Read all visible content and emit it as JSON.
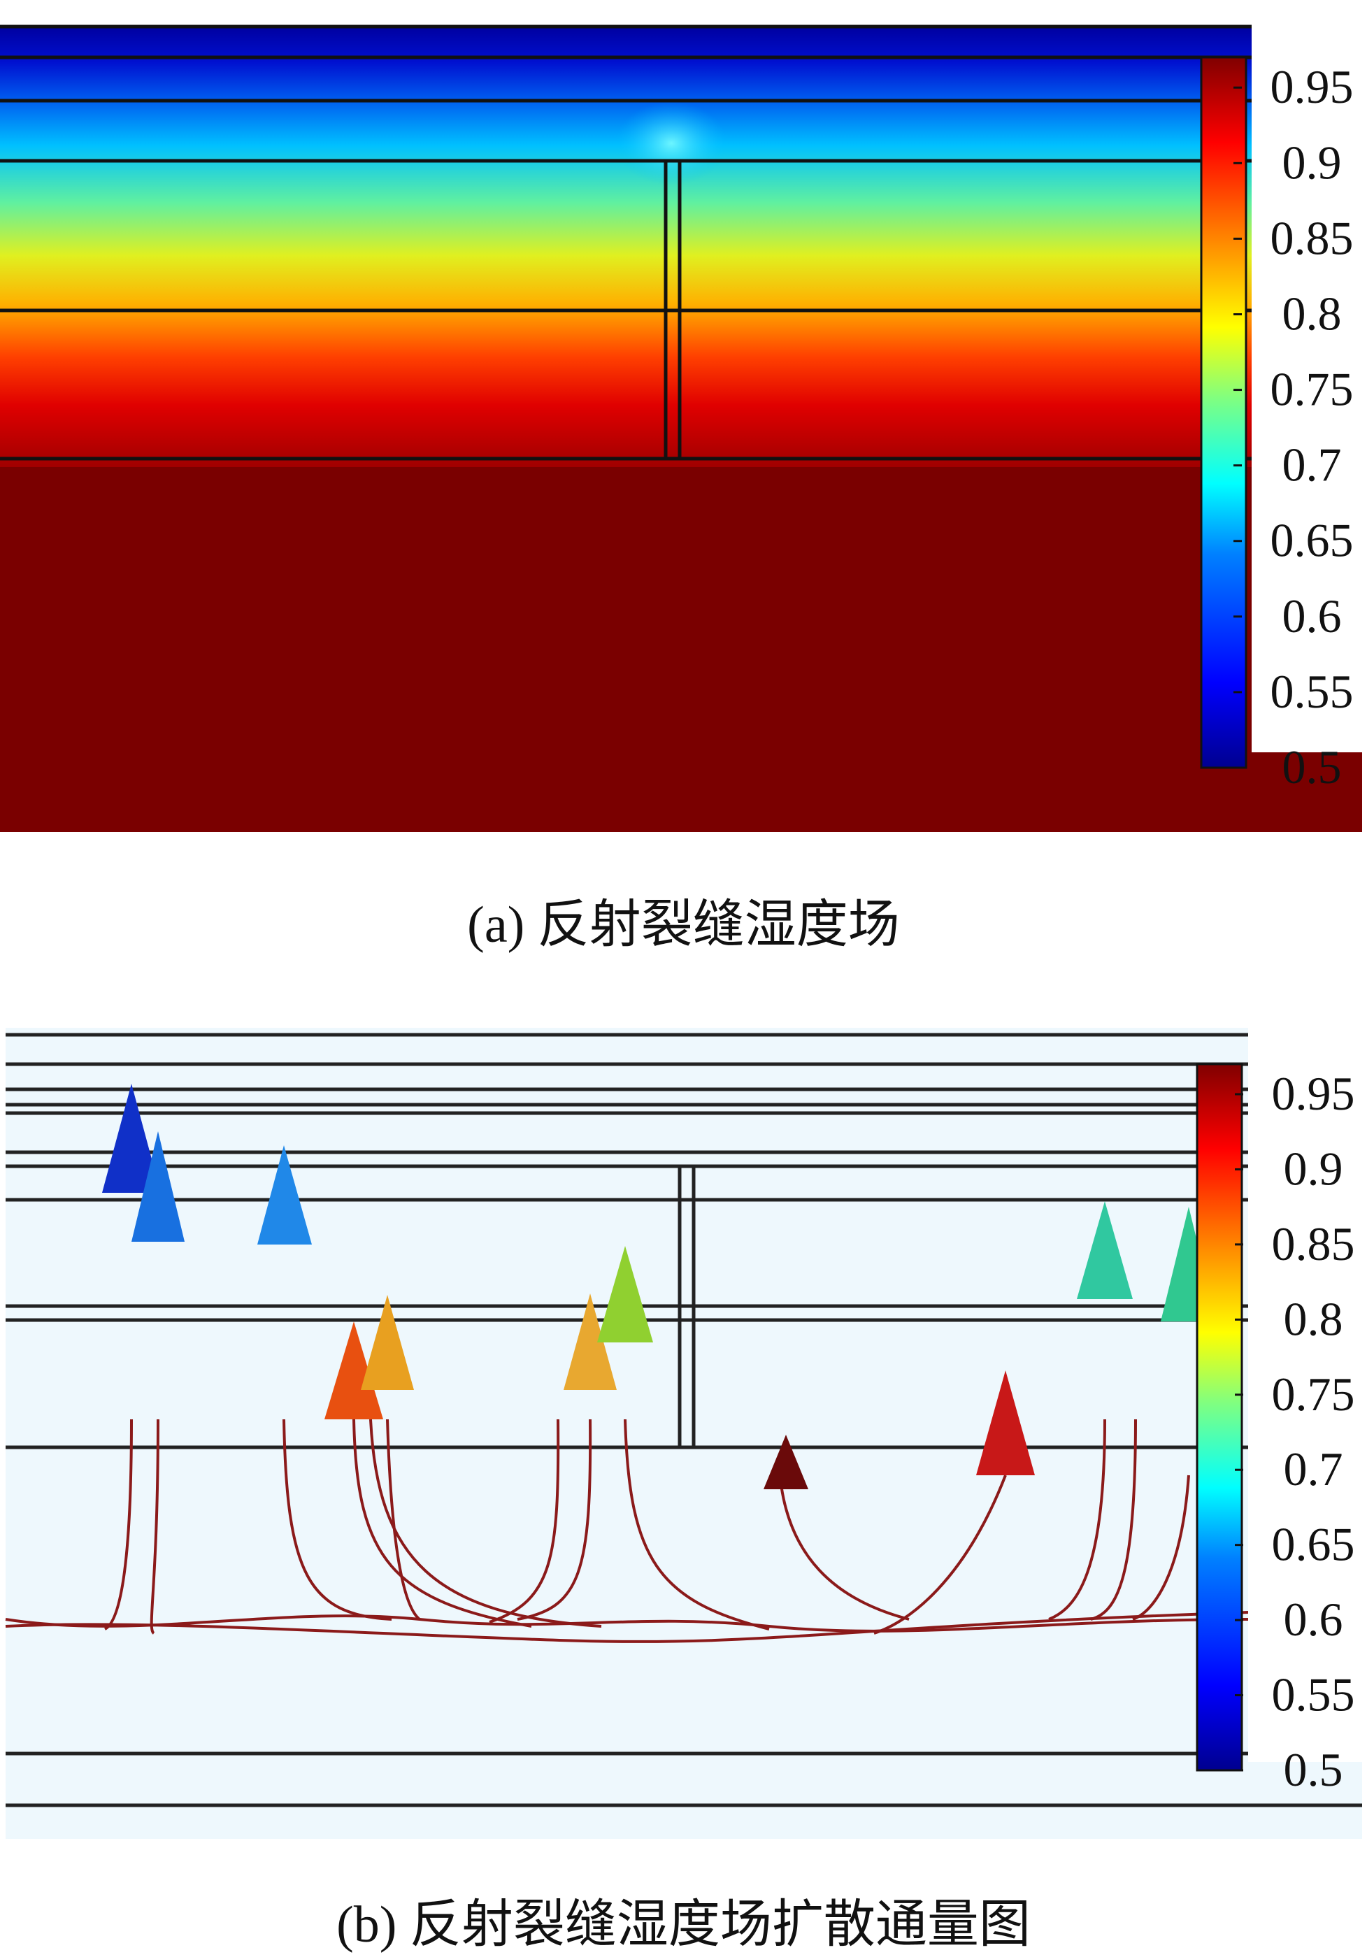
{
  "panel_a": {
    "caption": "(a) 反射裂缝湿度场",
    "colorbar": {
      "ticks": [
        "0.95",
        "0.9",
        "0.85",
        "0.8",
        "0.75",
        "0.7",
        "0.65",
        "0.6",
        "0.55",
        "0.5"
      ],
      "min": 0.5,
      "max": 0.97
    }
  },
  "panel_b": {
    "caption": "(b) 反射裂缝湿度场扩散通量图",
    "colorbar": {
      "ticks": [
        "0.95",
        "0.9",
        "0.85",
        "0.8",
        "0.75",
        "0.7",
        "0.65",
        "0.6",
        "0.55",
        "0.5"
      ],
      "min": 0.5,
      "max": 0.97
    }
  },
  "colors": {
    "jet": [
      "#00008f",
      "#0000ff",
      "#0080ff",
      "#00ffff",
      "#80ff80",
      "#ffff00",
      "#ff8000",
      "#ff0000",
      "#800000"
    ],
    "base_layer": "#7a0000",
    "streamline": "#8b1a1a",
    "flux_background": "#eef8fd"
  }
}
